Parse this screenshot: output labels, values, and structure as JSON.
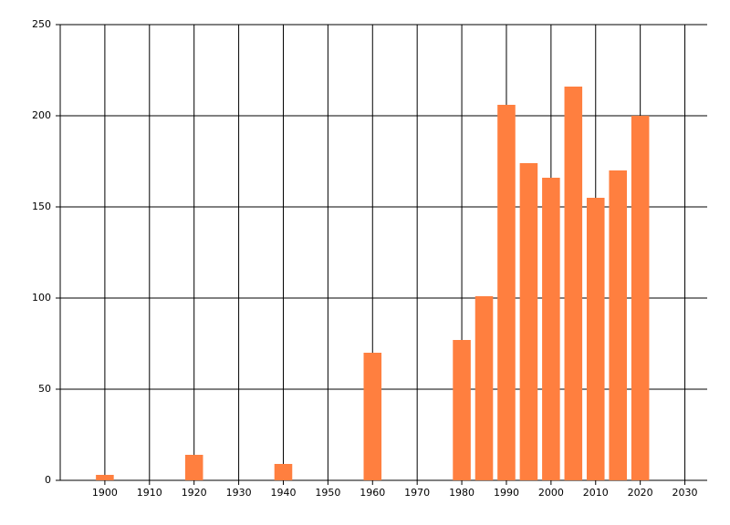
{
  "chart_data": {
    "type": "bar",
    "x": [
      1900,
      1920,
      1940,
      1960,
      1980,
      1985,
      1990,
      1995,
      2000,
      2005,
      2010,
      2015,
      2020
    ],
    "values": [
      3,
      14,
      9,
      70,
      77,
      101,
      206,
      174,
      166,
      216,
      155,
      170,
      200
    ],
    "color": "#ff7f3f",
    "xlim": [
      1890,
      2035
    ],
    "xticks": [
      1900,
      1910,
      1920,
      1930,
      1940,
      1950,
      1960,
      1970,
      1980,
      1990,
      2000,
      2010,
      2020,
      2030
    ],
    "ylim": [
      0,
      250
    ],
    "yticks": [
      0,
      50,
      100,
      150,
      200,
      250
    ],
    "grid": true
  }
}
